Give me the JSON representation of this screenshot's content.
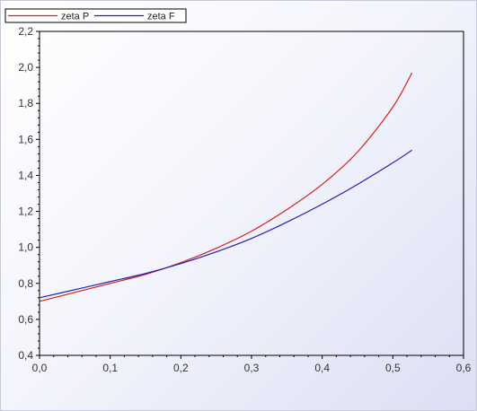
{
  "chart_data": {
    "type": "line",
    "title": "",
    "xlabel": "",
    "ylabel": "",
    "xlim": [
      0.0,
      0.6
    ],
    "ylim": [
      0.4,
      2.2
    ],
    "x_ticks": [
      "0,0",
      "0,1",
      "0,2",
      "0,3",
      "0,4",
      "0,5",
      "0,6"
    ],
    "y_ticks": [
      "0,4",
      "0,6",
      "0,8",
      "1,0",
      "1,2",
      "1,4",
      "1,6",
      "1,8",
      "2,0",
      "2,2"
    ],
    "grid": false,
    "legend_position": "top-left",
    "series": [
      {
        "name": "zeta P",
        "color": "#d62020",
        "x": [
          0.0,
          0.05,
          0.1,
          0.15,
          0.2,
          0.25,
          0.3,
          0.35,
          0.4,
          0.45,
          0.5,
          0.527
        ],
        "y": [
          0.7,
          0.75,
          0.8,
          0.85,
          0.915,
          0.995,
          1.09,
          1.21,
          1.35,
          1.53,
          1.78,
          1.97
        ]
      },
      {
        "name": "zeta F",
        "color": "#2020c0",
        "x": [
          0.0,
          0.05,
          0.1,
          0.15,
          0.2,
          0.25,
          0.3,
          0.35,
          0.4,
          0.45,
          0.5,
          0.527
        ],
        "y": [
          0.72,
          0.765,
          0.81,
          0.855,
          0.91,
          0.975,
          1.05,
          1.14,
          1.24,
          1.35,
          1.47,
          1.54
        ]
      }
    ]
  }
}
